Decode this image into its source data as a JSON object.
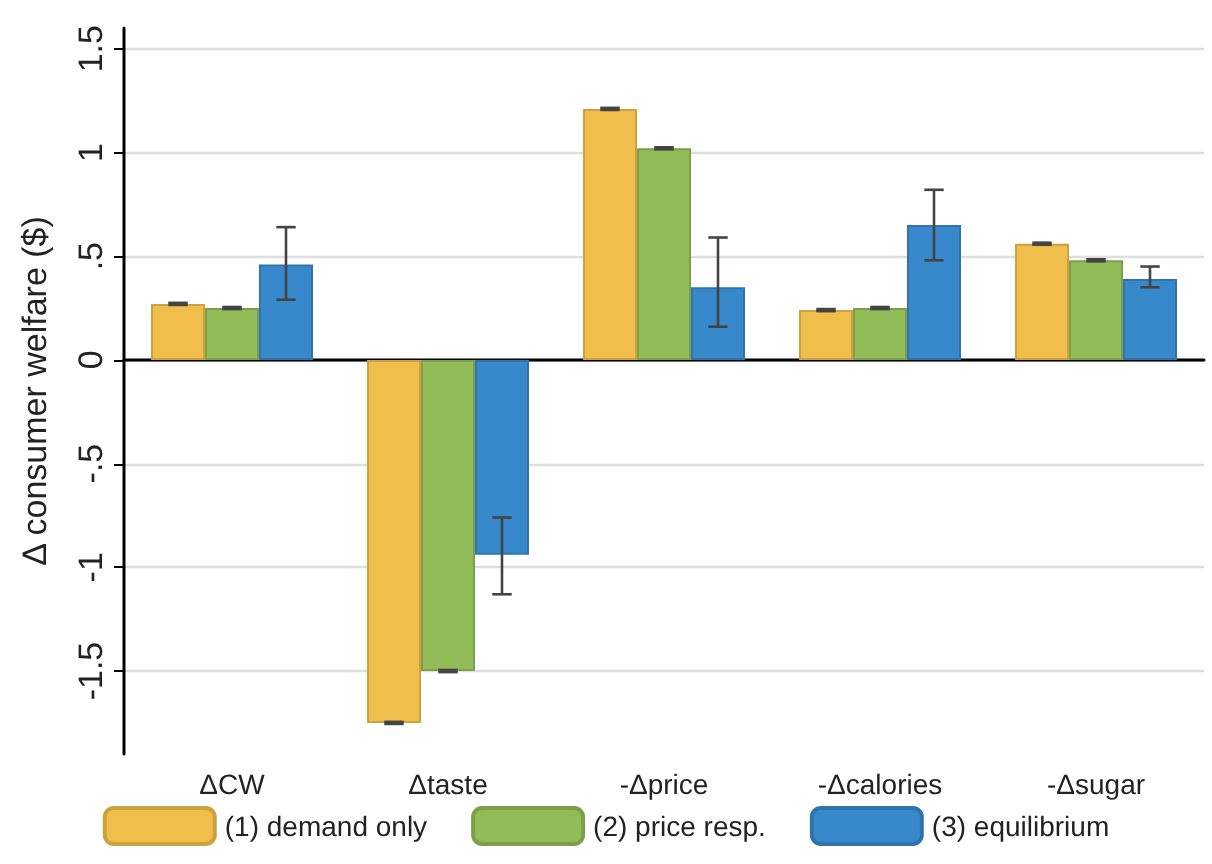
{
  "chart_data": {
    "type": "bar",
    "ylabel": "Δ consumer welfare ($)",
    "categories": [
      "ΔCW",
      "Δtaste",
      "-Δprice",
      "-Δcalories",
      "-Δsugar"
    ],
    "series": [
      {
        "name": "(1) demand only",
        "color": "#f0be4a",
        "values": [
          0.27,
          -1.75,
          1.21,
          0.24,
          0.56
        ],
        "errors": [
          0.005,
          0.005,
          0.005,
          0.005,
          0.005
        ]
      },
      {
        "name": "(2) price resp.",
        "color": "#92bc57",
        "values": [
          0.25,
          -1.5,
          1.02,
          0.25,
          0.48
        ],
        "errors": [
          0.005,
          0.005,
          0.005,
          0.005,
          0.005
        ]
      },
      {
        "name": "(3) equilibrium",
        "color": "#3789cc",
        "values": [
          0.46,
          -0.94,
          0.35,
          0.65,
          0.39
        ],
        "errors": [
          [
            0.29,
            0.64
          ],
          [
            -1.13,
            -0.76
          ],
          [
            0.16,
            0.59
          ],
          [
            0.48,
            0.82
          ],
          [
            0.35,
            0.45
          ]
        ]
      }
    ],
    "ylim": [
      -1.9,
      1.6
    ],
    "yticks": [
      {
        "value": -1.5,
        "label": "-1.5"
      },
      -1,
      {
        "value": -0.5,
        "label": "-.5"
      },
      0,
      {
        "value": 0.5,
        "label": ".5"
      },
      1,
      1.5
    ],
    "grid": "y",
    "legend": "bottom"
  }
}
